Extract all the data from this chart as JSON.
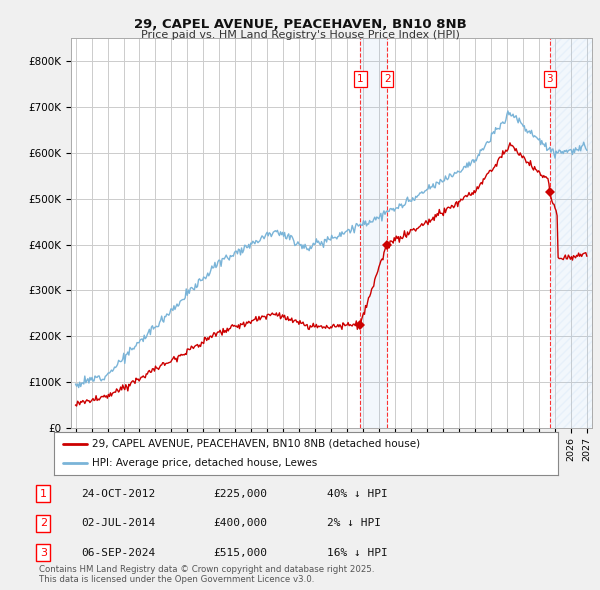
{
  "title1": "29, CAPEL AVENUE, PEACEHAVEN, BN10 8NB",
  "title2": "Price paid vs. HM Land Registry's House Price Index (HPI)",
  "bg_color": "#f0f0f0",
  "plot_bg_color": "#ffffff",
  "grid_color": "#cccccc",
  "hpi_color": "#7ab4d8",
  "price_color": "#cc0000",
  "ylim": [
    0,
    850000
  ],
  "yticks": [
    0,
    100000,
    200000,
    300000,
    400000,
    500000,
    600000,
    700000,
    800000
  ],
  "ytick_labels": [
    "£0",
    "£100K",
    "£200K",
    "£300K",
    "£400K",
    "£500K",
    "£600K",
    "£700K",
    "£800K"
  ],
  "xlim_start": 1994.7,
  "xlim_end": 2027.3,
  "sale_year_nums": [
    2012.82,
    2014.5,
    2024.69
  ],
  "sale_prices": [
    225000,
    400000,
    515000
  ],
  "sale_labels": [
    "1",
    "2",
    "3"
  ],
  "legend_line1": "29, CAPEL AVENUE, PEACEHAVEN, BN10 8NB (detached house)",
  "legend_line2": "HPI: Average price, detached house, Lewes",
  "table_entries": [
    {
      "num": "1",
      "date": "24-OCT-2012",
      "price": "£225,000",
      "pct": "40% ↓ HPI"
    },
    {
      "num": "2",
      "date": "02-JUL-2014",
      "price": "£400,000",
      "pct": "2% ↓ HPI"
    },
    {
      "num": "3",
      "date": "06-SEP-2024",
      "price": "£515,000",
      "pct": "16% ↓ HPI"
    }
  ],
  "footnote": "Contains HM Land Registry data © Crown copyright and database right 2025.\nThis data is licensed under the Open Government Licence v3.0."
}
